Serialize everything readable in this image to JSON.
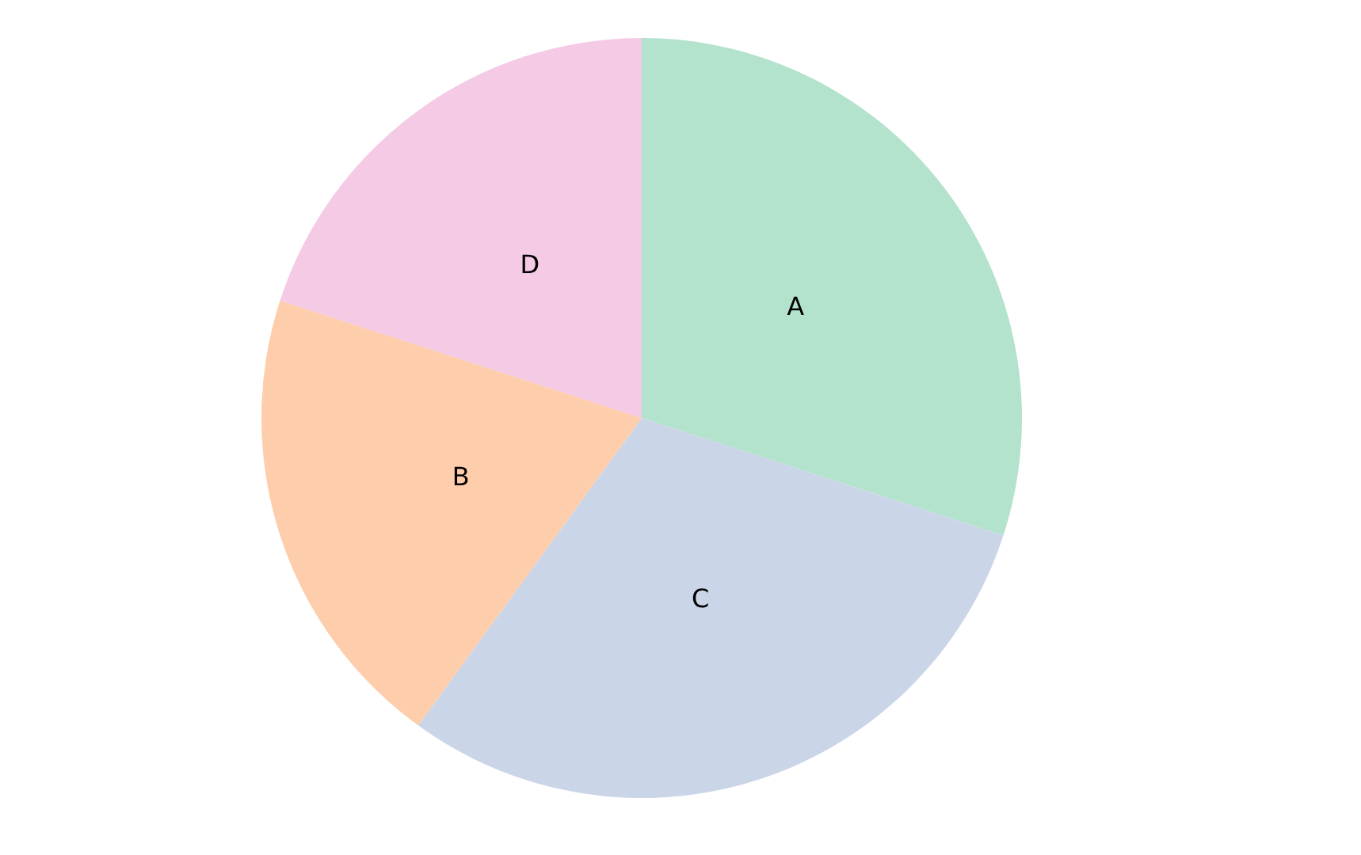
{
  "chart_data": {
    "type": "pie",
    "categories": [
      "A",
      "C",
      "B",
      "D"
    ],
    "values": [
      30,
      30,
      20,
      20
    ],
    "colors": [
      "#b3e2cd",
      "#cbd5e8",
      "#fdcdac",
      "#f4cae4"
    ],
    "legend": false
  }
}
